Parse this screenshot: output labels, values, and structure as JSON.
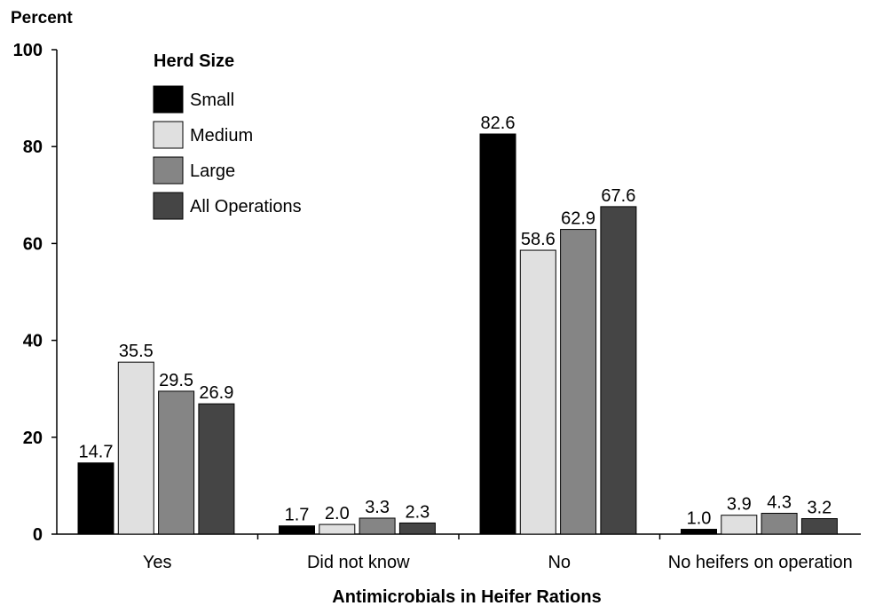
{
  "chart_data": {
    "type": "bar",
    "title": "",
    "ylabel": "Percent",
    "xlabel": "Antimicrobials in Heifer Rations",
    "ylim": [
      0,
      100
    ],
    "yticks": [
      0,
      20,
      40,
      60,
      80,
      100
    ],
    "categories": [
      "Yes",
      "Did not know",
      "No",
      "No heifers on operation"
    ],
    "legend_title": "Herd Size",
    "legend_position": "top-left",
    "grid": false,
    "series": [
      {
        "name": "Small",
        "color": "#000000",
        "values": [
          14.7,
          1.7,
          82.6,
          1.0
        ],
        "labels": [
          "14.7",
          "1.7",
          "82.6",
          "1.0"
        ]
      },
      {
        "name": "Medium",
        "color": "#e0e0e0",
        "values": [
          35.5,
          2.0,
          58.6,
          3.9
        ],
        "labels": [
          "35.5",
          "2.0",
          "58.6",
          "3.9"
        ]
      },
      {
        "name": "Large",
        "color": "#858585",
        "values": [
          29.5,
          3.3,
          62.9,
          4.3
        ],
        "labels": [
          "29.5",
          "3.3",
          "62.9",
          "4.3"
        ]
      },
      {
        "name": "All Operations",
        "color": "#454545",
        "values": [
          26.9,
          2.3,
          67.6,
          3.2
        ],
        "labels": [
          "26.9",
          "2.3",
          "67.6",
          "3.2"
        ]
      }
    ]
  }
}
